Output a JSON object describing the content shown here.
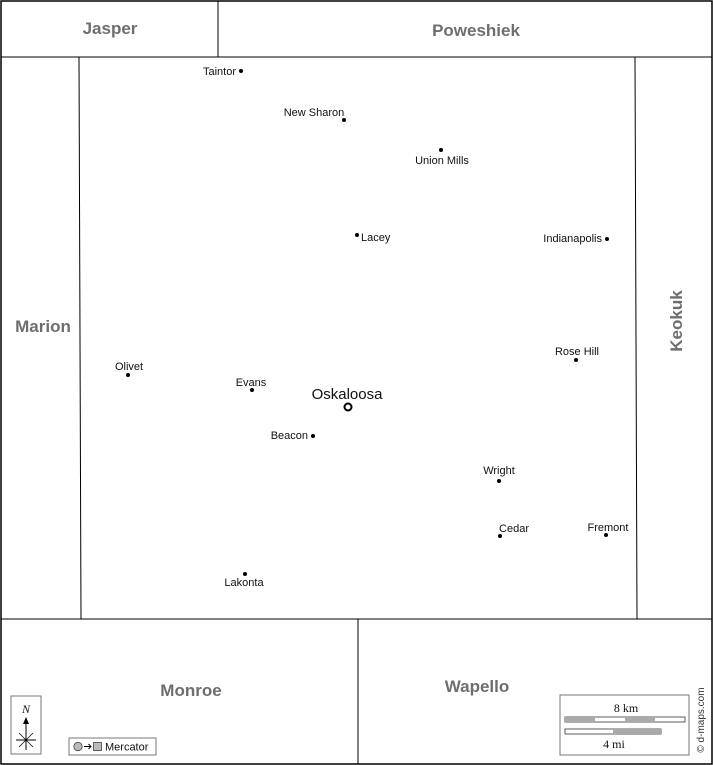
{
  "neighbors": {
    "jasper": "Jasper",
    "poweshiek": "Poweshiek",
    "marion": "Marion",
    "keokuk": "Keokuk",
    "monroe": "Monroe",
    "wapello": "Wapello"
  },
  "county_seat": "Oskaloosa",
  "towns": {
    "taintor": "Taintor",
    "new_sharon": "New Sharon",
    "union_mills": "Union Mills",
    "lacey": "Lacey",
    "indianapolis": "Indianapolis",
    "olivet": "Olivet",
    "rose_hill": "Rose Hill",
    "evans": "Evans",
    "beacon": "Beacon",
    "wright": "Wright",
    "cedar": "Cedar",
    "fremont": "Fremont",
    "lakonta": "Lakonta"
  },
  "legend": {
    "north": "N",
    "projection": "Mercator",
    "scale_km": "8 km",
    "scale_mi": "4 mi",
    "credit": "© d-maps.com"
  }
}
